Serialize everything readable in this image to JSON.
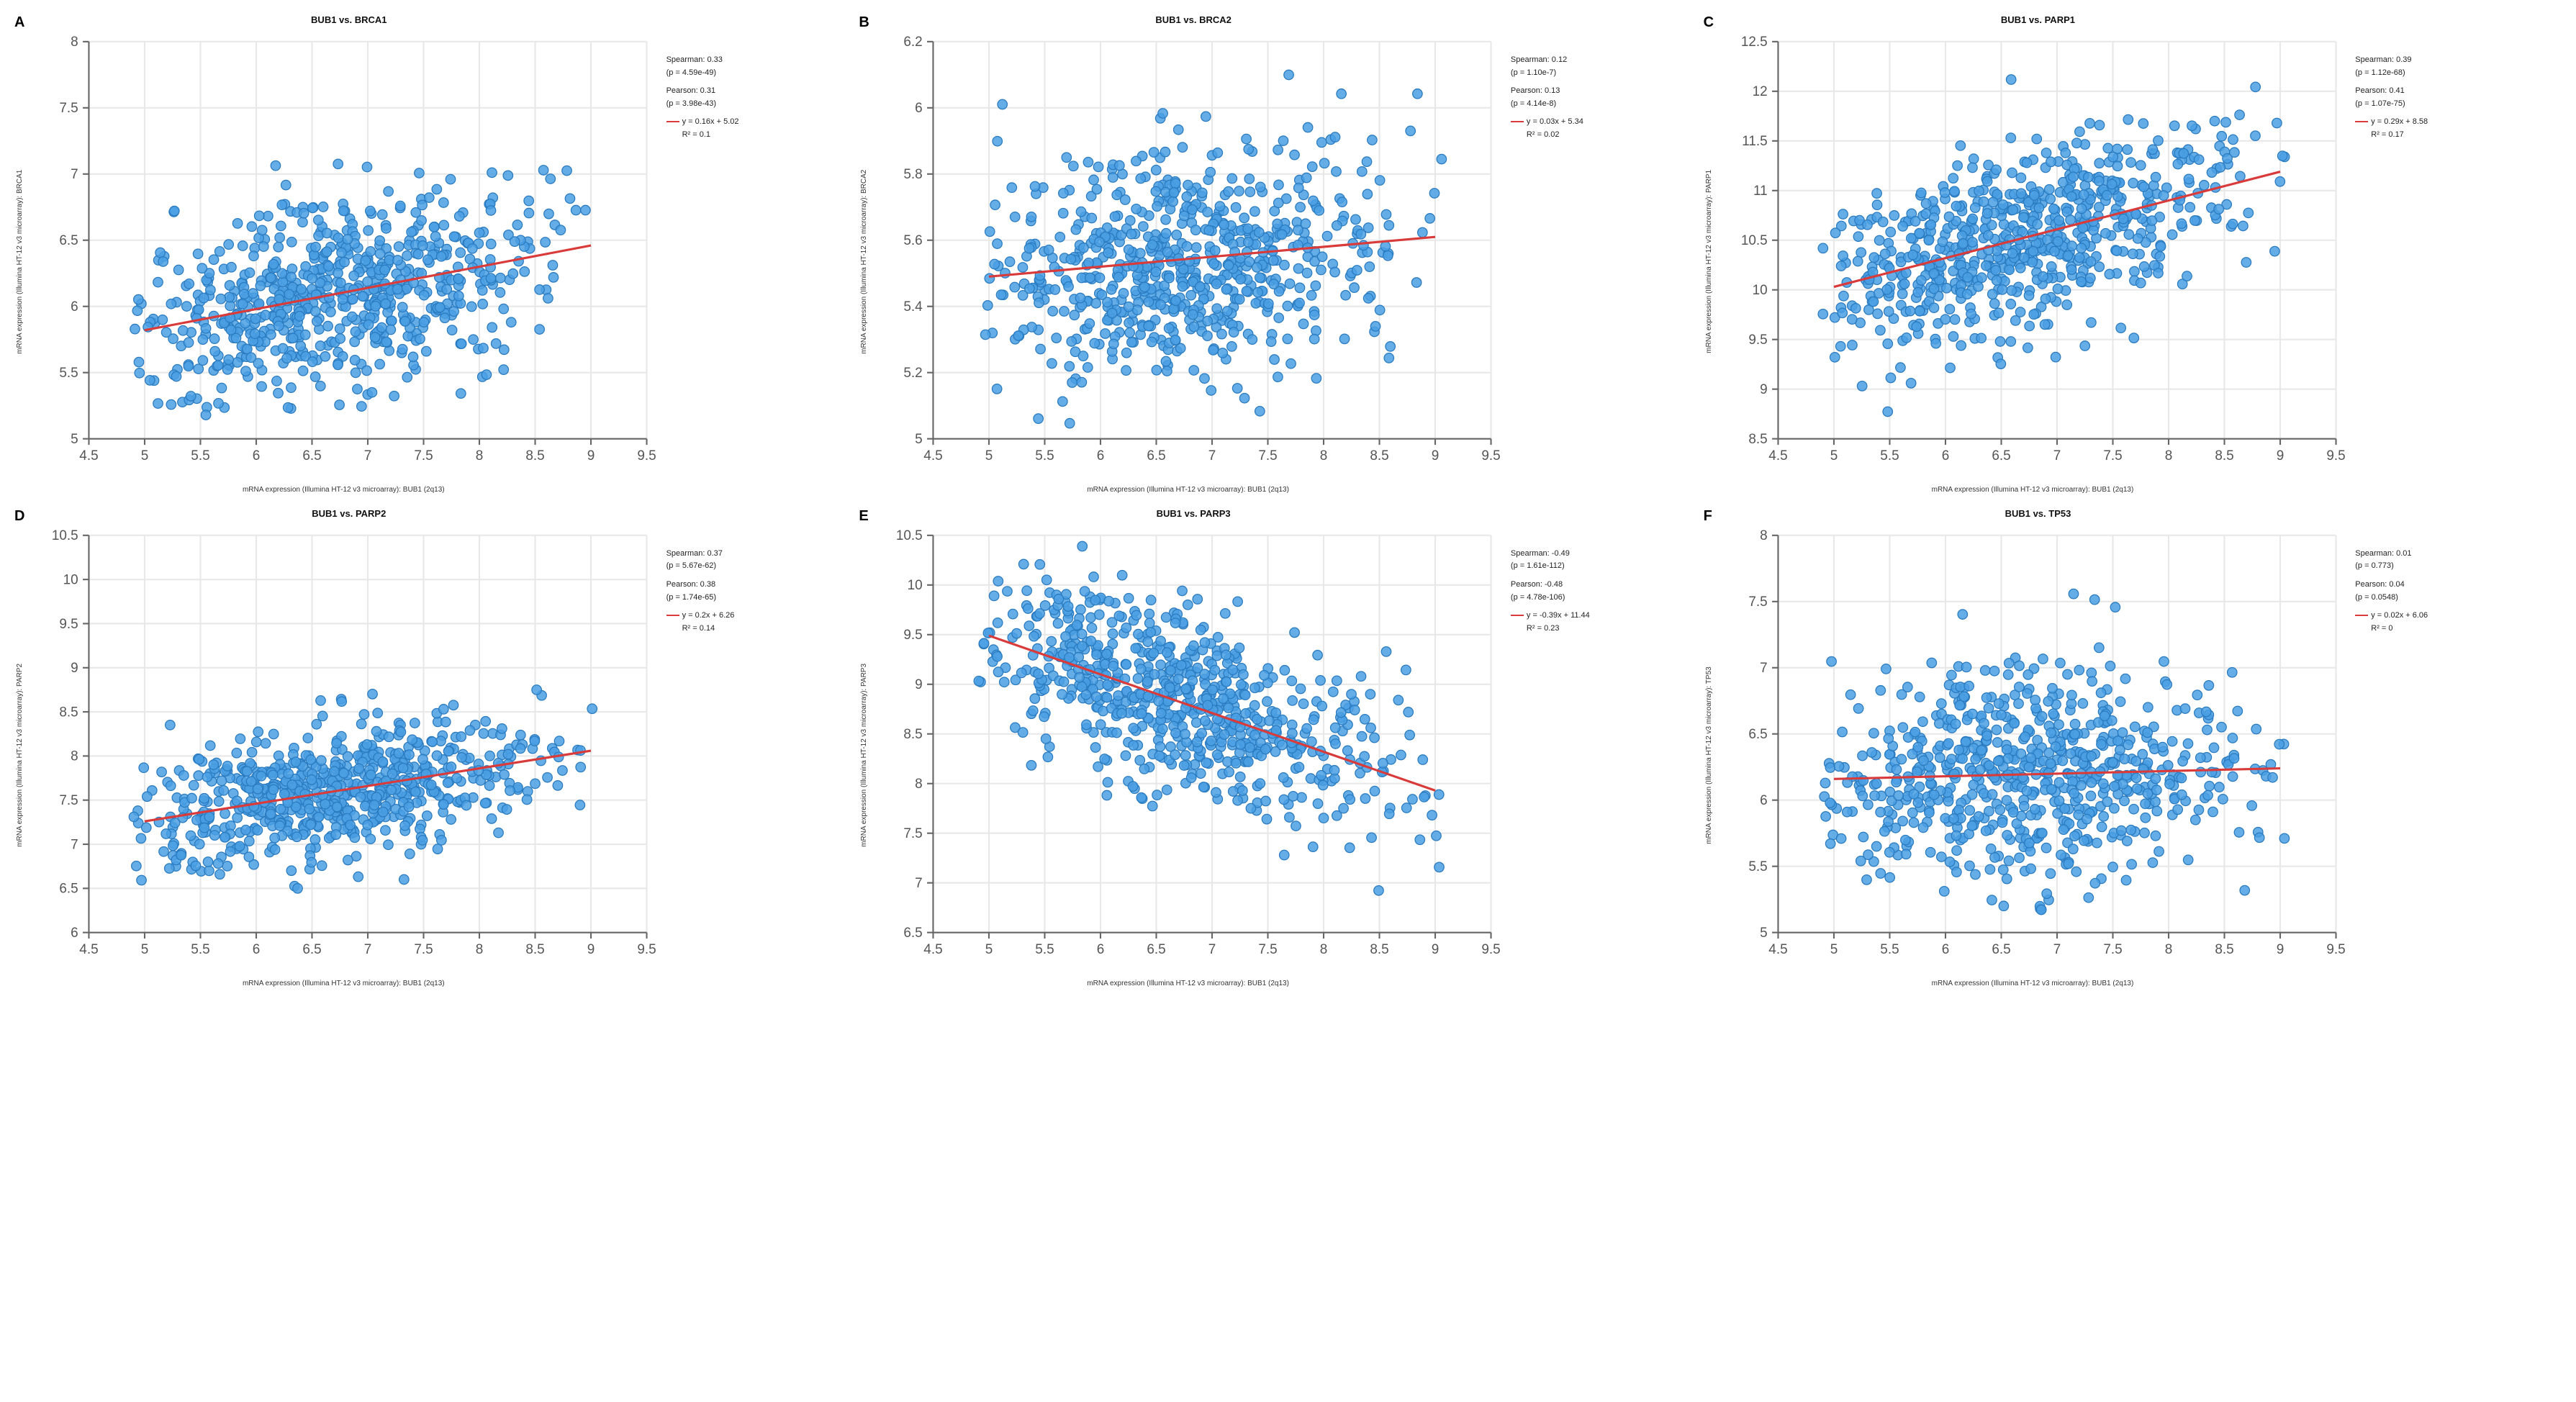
{
  "global": {
    "point_color": "#4a9fe3",
    "point_stroke": "#2a7bc0",
    "line_color": "#d93a3a",
    "grid_color": "#e8e8e8",
    "axis_color": "#666666",
    "tick_color": "#555555",
    "background_color": "#ffffff",
    "tick_fontsize": 9,
    "label_fontsize": 10,
    "title_fontsize": 13,
    "letter_fontsize": 20,
    "n_points": 700,
    "point_radius": 3.2,
    "xlim": [
      4.5,
      9.5
    ],
    "xticks": [
      4.5,
      5,
      5.5,
      6,
      6.5,
      7,
      7.5,
      8,
      8.5,
      9,
      9.5
    ],
    "xmean": 6.7,
    "xspread": 0.95,
    "x_axis_label": "mRNA expression (Illumina HT-12 v3 microarray): BUB1 (2q13)"
  },
  "panels": [
    {
      "letter": "A",
      "title": "BUB1 vs. BRCA1",
      "ylabel": "mRNA expression (Illumina HT-12 v3 microarray): BRCA1",
      "ylim": [
        5,
        8
      ],
      "yticks": [
        5,
        5.5,
        6,
        6.5,
        7,
        7.5,
        8
      ],
      "slope": 0.16,
      "intercept": 5.02,
      "noise_sd": 0.35,
      "spearman": "Spearman: 0.33",
      "spearman_p": "(p = 4.59e-49)",
      "pearson": "Pearson: 0.31",
      "pearson_p": "(p = 3.98e-43)",
      "equation": "y = 0.16x + 5.02",
      "r2": "R² = 0.1"
    },
    {
      "letter": "B",
      "title": "BUB1 vs. BRCA2",
      "ylabel": "mRNA expression (Illumina HT-12 v3 microarray): BRCA2",
      "ylim": [
        5,
        6.2
      ],
      "yticks": [
        5,
        5.2,
        5.4,
        5.6,
        5.8,
        6,
        6.2
      ],
      "slope": 0.03,
      "intercept": 5.34,
      "noise_sd": 0.17,
      "spearman": "Spearman: 0.12",
      "spearman_p": "(p = 1.10e-7)",
      "pearson": "Pearson: 0.13",
      "pearson_p": "(p = 4.14e-8)",
      "equation": "y = 0.03x + 5.34",
      "r2": "R² = 0.02"
    },
    {
      "letter": "C",
      "title": "BUB1 vs. PARP1",
      "ylabel": "mRNA expression (Illumina HT-12 v3 microarray): PARP1",
      "ylim": [
        8.5,
        12.5
      ],
      "yticks": [
        8.5,
        9,
        9.5,
        10,
        10.5,
        11,
        11.5,
        12,
        12.5
      ],
      "slope": 0.29,
      "intercept": 8.58,
      "noise_sd": 0.45,
      "spearman": "Spearman: 0.39",
      "spearman_p": "(p = 1.12e-68)",
      "pearson": "Pearson: 0.41",
      "pearson_p": "(p = 1.07e-75)",
      "equation": "y = 0.29x + 8.58",
      "r2": "R² = 0.17"
    },
    {
      "letter": "D",
      "title": "BUB1 vs. PARP2",
      "ylabel": "mRNA expression (Illumina HT-12 v3 microarray): PARP2",
      "ylim": [
        6,
        10.5
      ],
      "yticks": [
        6,
        6.5,
        7,
        7.5,
        8,
        8.5,
        9,
        9.5,
        10,
        10.5
      ],
      "slope": 0.2,
      "intercept": 6.26,
      "noise_sd": 0.35,
      "spearman": "Spearman: 0.37",
      "spearman_p": "(p = 5.67e-62)",
      "pearson": "Pearson: 0.38",
      "pearson_p": "(p = 1.74e-65)",
      "equation": "y = 0.2x + 6.26",
      "r2": "R² = 0.14"
    },
    {
      "letter": "E",
      "title": "BUB1 vs. PARP3",
      "ylabel": "mRNA expression (Illumina HT-12 v3 microarray): PARP3",
      "ylim": [
        6.5,
        10.5
      ],
      "yticks": [
        6.5,
        7,
        7.5,
        8,
        8.5,
        9,
        9.5,
        10,
        10.5
      ],
      "slope": -0.39,
      "intercept": 11.44,
      "noise_sd": 0.45,
      "spearman": "Spearman: -0.49",
      "spearman_p": "(p = 1.61e-112)",
      "pearson": "Pearson: -0.48",
      "pearson_p": "(p = 4.78e-106)",
      "equation": "y = -0.39x + 11.44",
      "r2": "R² = 0.23"
    },
    {
      "letter": "F",
      "title": "BUB1 vs. TP53",
      "ylabel": "mRNA expression (Illumina HT-12 v3 microarray): TP53",
      "ylim": [
        5,
        8
      ],
      "yticks": [
        5,
        5.5,
        6,
        6.5,
        7,
        7.5,
        8
      ],
      "slope": 0.02,
      "intercept": 6.06,
      "noise_sd": 0.4,
      "spearman": "Spearman: 0.01",
      "spearman_p": "(p = 0.773)",
      "pearson": "Pearson: 0.04",
      "pearson_p": "(p = 0.0548)",
      "equation": "y = 0.02x + 6.06",
      "r2": "R² = 0"
    }
  ]
}
